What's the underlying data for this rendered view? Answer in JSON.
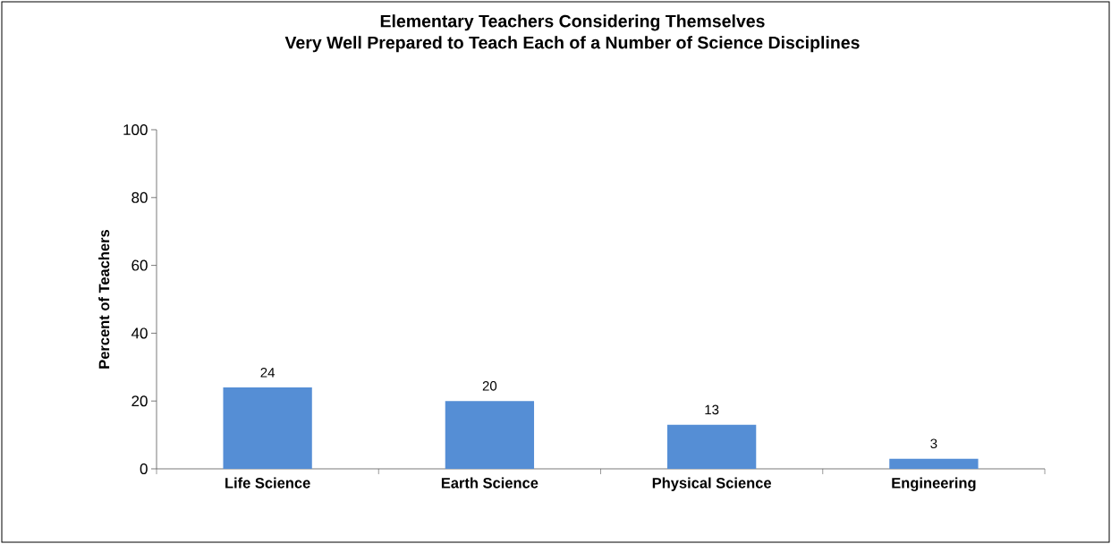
{
  "chart_data": {
    "type": "bar",
    "title": "Elementary Teachers Considering Themselves\nVery Well Prepared to Teach Each of a Number of Science Disciplines",
    "ylabel": "Percent of Teachers",
    "categories": [
      "Life Science",
      "Earth Science",
      "Physical Science",
      "Engineering"
    ],
    "values": [
      24,
      20,
      13,
      3
    ],
    "color": "#558ed5",
    "data_labels": true,
    "ylim": [
      0,
      100
    ],
    "yticks": [
      0,
      20,
      40,
      60,
      80,
      100
    ],
    "grid": false
  }
}
